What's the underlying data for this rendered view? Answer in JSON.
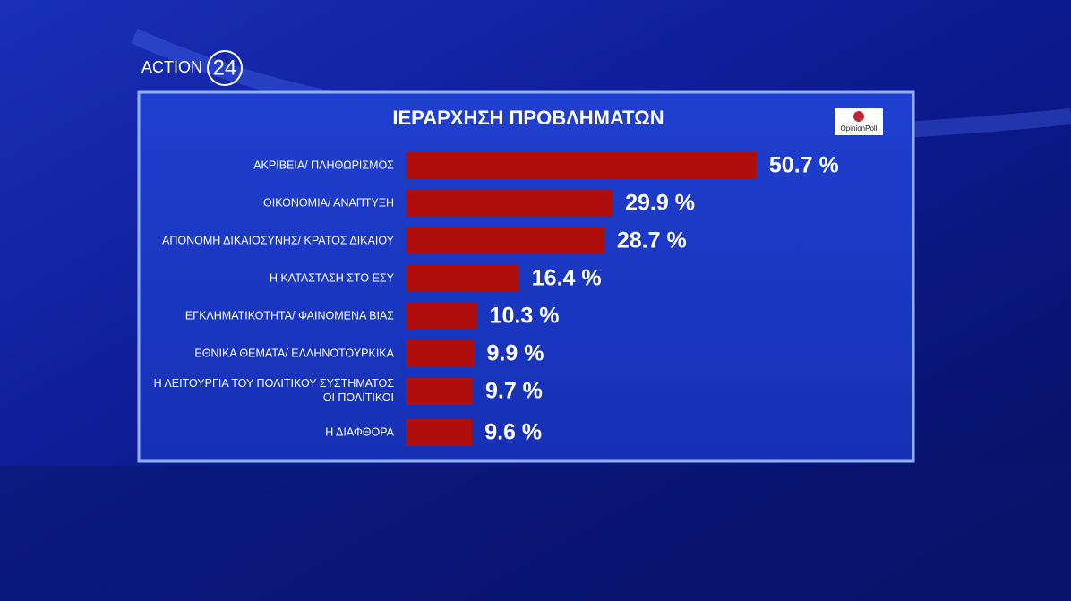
{
  "channel": {
    "name": "ACTION",
    "number": "24"
  },
  "source": "OpinionPoll",
  "chart_data": {
    "type": "bar",
    "orientation": "horizontal",
    "title": "ΙΕΡΑΡΧΗΣΗ ΠΡΟΒΛΗΜΑΤΩΝ",
    "categories": [
      "ΑΚΡΙΒΕΙΑ/ ΠΛΗΘΩΡΙΣΜΟΣ",
      "ΟΙΚΟΝΟΜΙΑ/ ΑΝΑΠΤΥΞΗ",
      "ΑΠΟΝΟΜΗ ΔΙΚΑΙΟΣΥΝΗΣ/ ΚΡΑΤΟΣ ΔΙΚΑΙΟΥ",
      "Η ΚΑΤΑΣΤΑΣΗ ΣΤΟ ΕΣΥ",
      "ΕΓΚΛΗΜΑΤΙΚΟΤΗΤΑ/ ΦΑΙΝΟΜΕΝΑ ΒΙΑΣ",
      "ΕΘΝΙΚΑ ΘΕΜΑΤΑ/ ΕΛΛΗΝΟΤΟΥΡΚΙΚΑ",
      "Η ΛΕΙΤΟΥΡΓΙΑ ΤΟΥ ΠΟΛΙΤΙΚΟΥ ΣΥΣΤΗΜΑΤΟΣ\nΟΙ ΠΟΛΙΤΙΚΟΙ",
      "Η ΔΙΑΦΘΟΡΑ"
    ],
    "values": [
      50.7,
      29.9,
      28.7,
      16.4,
      10.3,
      9.9,
      9.7,
      9.6
    ],
    "value_labels": [
      "50.7 %",
      "29.9 %",
      "28.7 %",
      "16.4 %",
      "10.3 %",
      "9.9 %",
      "9.7 %",
      "9.6 %"
    ],
    "color": "#b00d0d"
  }
}
